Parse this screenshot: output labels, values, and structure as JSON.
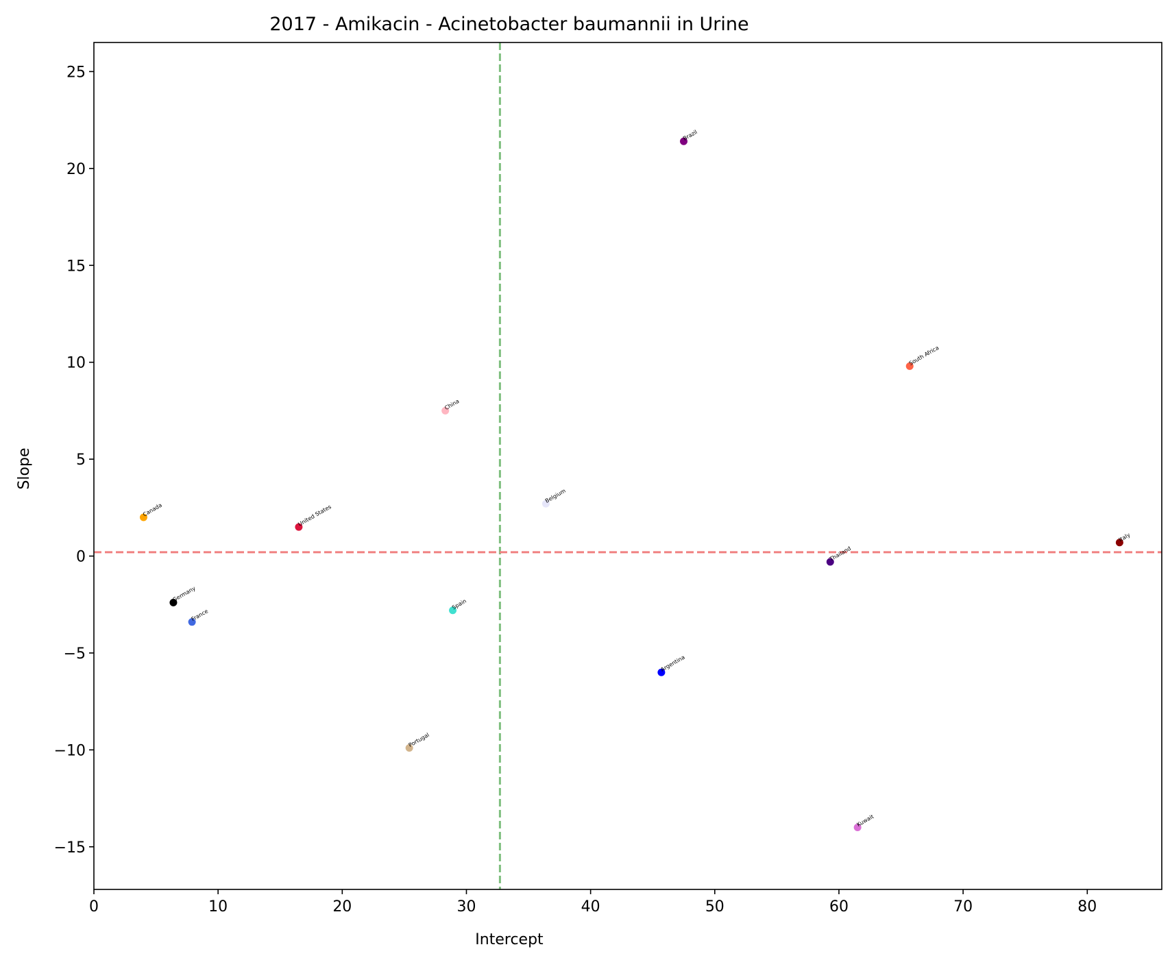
{
  "chart_data": {
    "type": "scatter",
    "title": "2017 - Amikacin - Acinetobacter baumannii in Urine",
    "xlabel": "Intercept",
    "ylabel": "Slope",
    "xlim": [
      0,
      86
    ],
    "ylim": [
      -17.2,
      26.5
    ],
    "xticks": [
      0,
      10,
      20,
      30,
      40,
      50,
      60,
      70,
      80
    ],
    "yticks": [
      -15,
      -10,
      -5,
      0,
      5,
      10,
      15,
      20,
      25
    ],
    "grid": false,
    "reference_lines": {
      "vertical": {
        "x": 32.7,
        "color": "#7fbf7f",
        "style": "dashed"
      },
      "horizontal": {
        "y": 0.2,
        "color": "#f08080",
        "style": "dashed"
      }
    },
    "points": [
      {
        "label": "Brazil",
        "x": 47.5,
        "y": 21.4,
        "color": "#800080"
      },
      {
        "label": "South Africa",
        "x": 65.7,
        "y": 9.8,
        "color": "#ff6347"
      },
      {
        "label": "China",
        "x": 28.3,
        "y": 7.5,
        "color": "#ffb6c1"
      },
      {
        "label": "Belgium",
        "x": 36.4,
        "y": 2.7,
        "color": "#e6e6fa"
      },
      {
        "label": "Canada",
        "x": 4.0,
        "y": 2.0,
        "color": "#ffa500"
      },
      {
        "label": "United States",
        "x": 16.5,
        "y": 1.5,
        "color": "#dc143c"
      },
      {
        "label": "Italy",
        "x": 82.6,
        "y": 0.7,
        "color": "#8b0000"
      },
      {
        "label": "Thailand",
        "x": 59.3,
        "y": -0.3,
        "color": "#4b0082"
      },
      {
        "label": "Germany",
        "x": 6.4,
        "y": -2.4,
        "color": "#000000"
      },
      {
        "label": "Spain",
        "x": 28.9,
        "y": -2.8,
        "color": "#40e0d0"
      },
      {
        "label": "France",
        "x": 7.9,
        "y": -3.4,
        "color": "#4169e1"
      },
      {
        "label": "Argentina",
        "x": 45.7,
        "y": -6.0,
        "color": "#0000ff"
      },
      {
        "label": "Portugal",
        "x": 25.4,
        "y": -9.9,
        "color": "#d2b48c"
      },
      {
        "label": "Kuwait",
        "x": 61.5,
        "y": -14.0,
        "color": "#da70d6"
      }
    ]
  }
}
